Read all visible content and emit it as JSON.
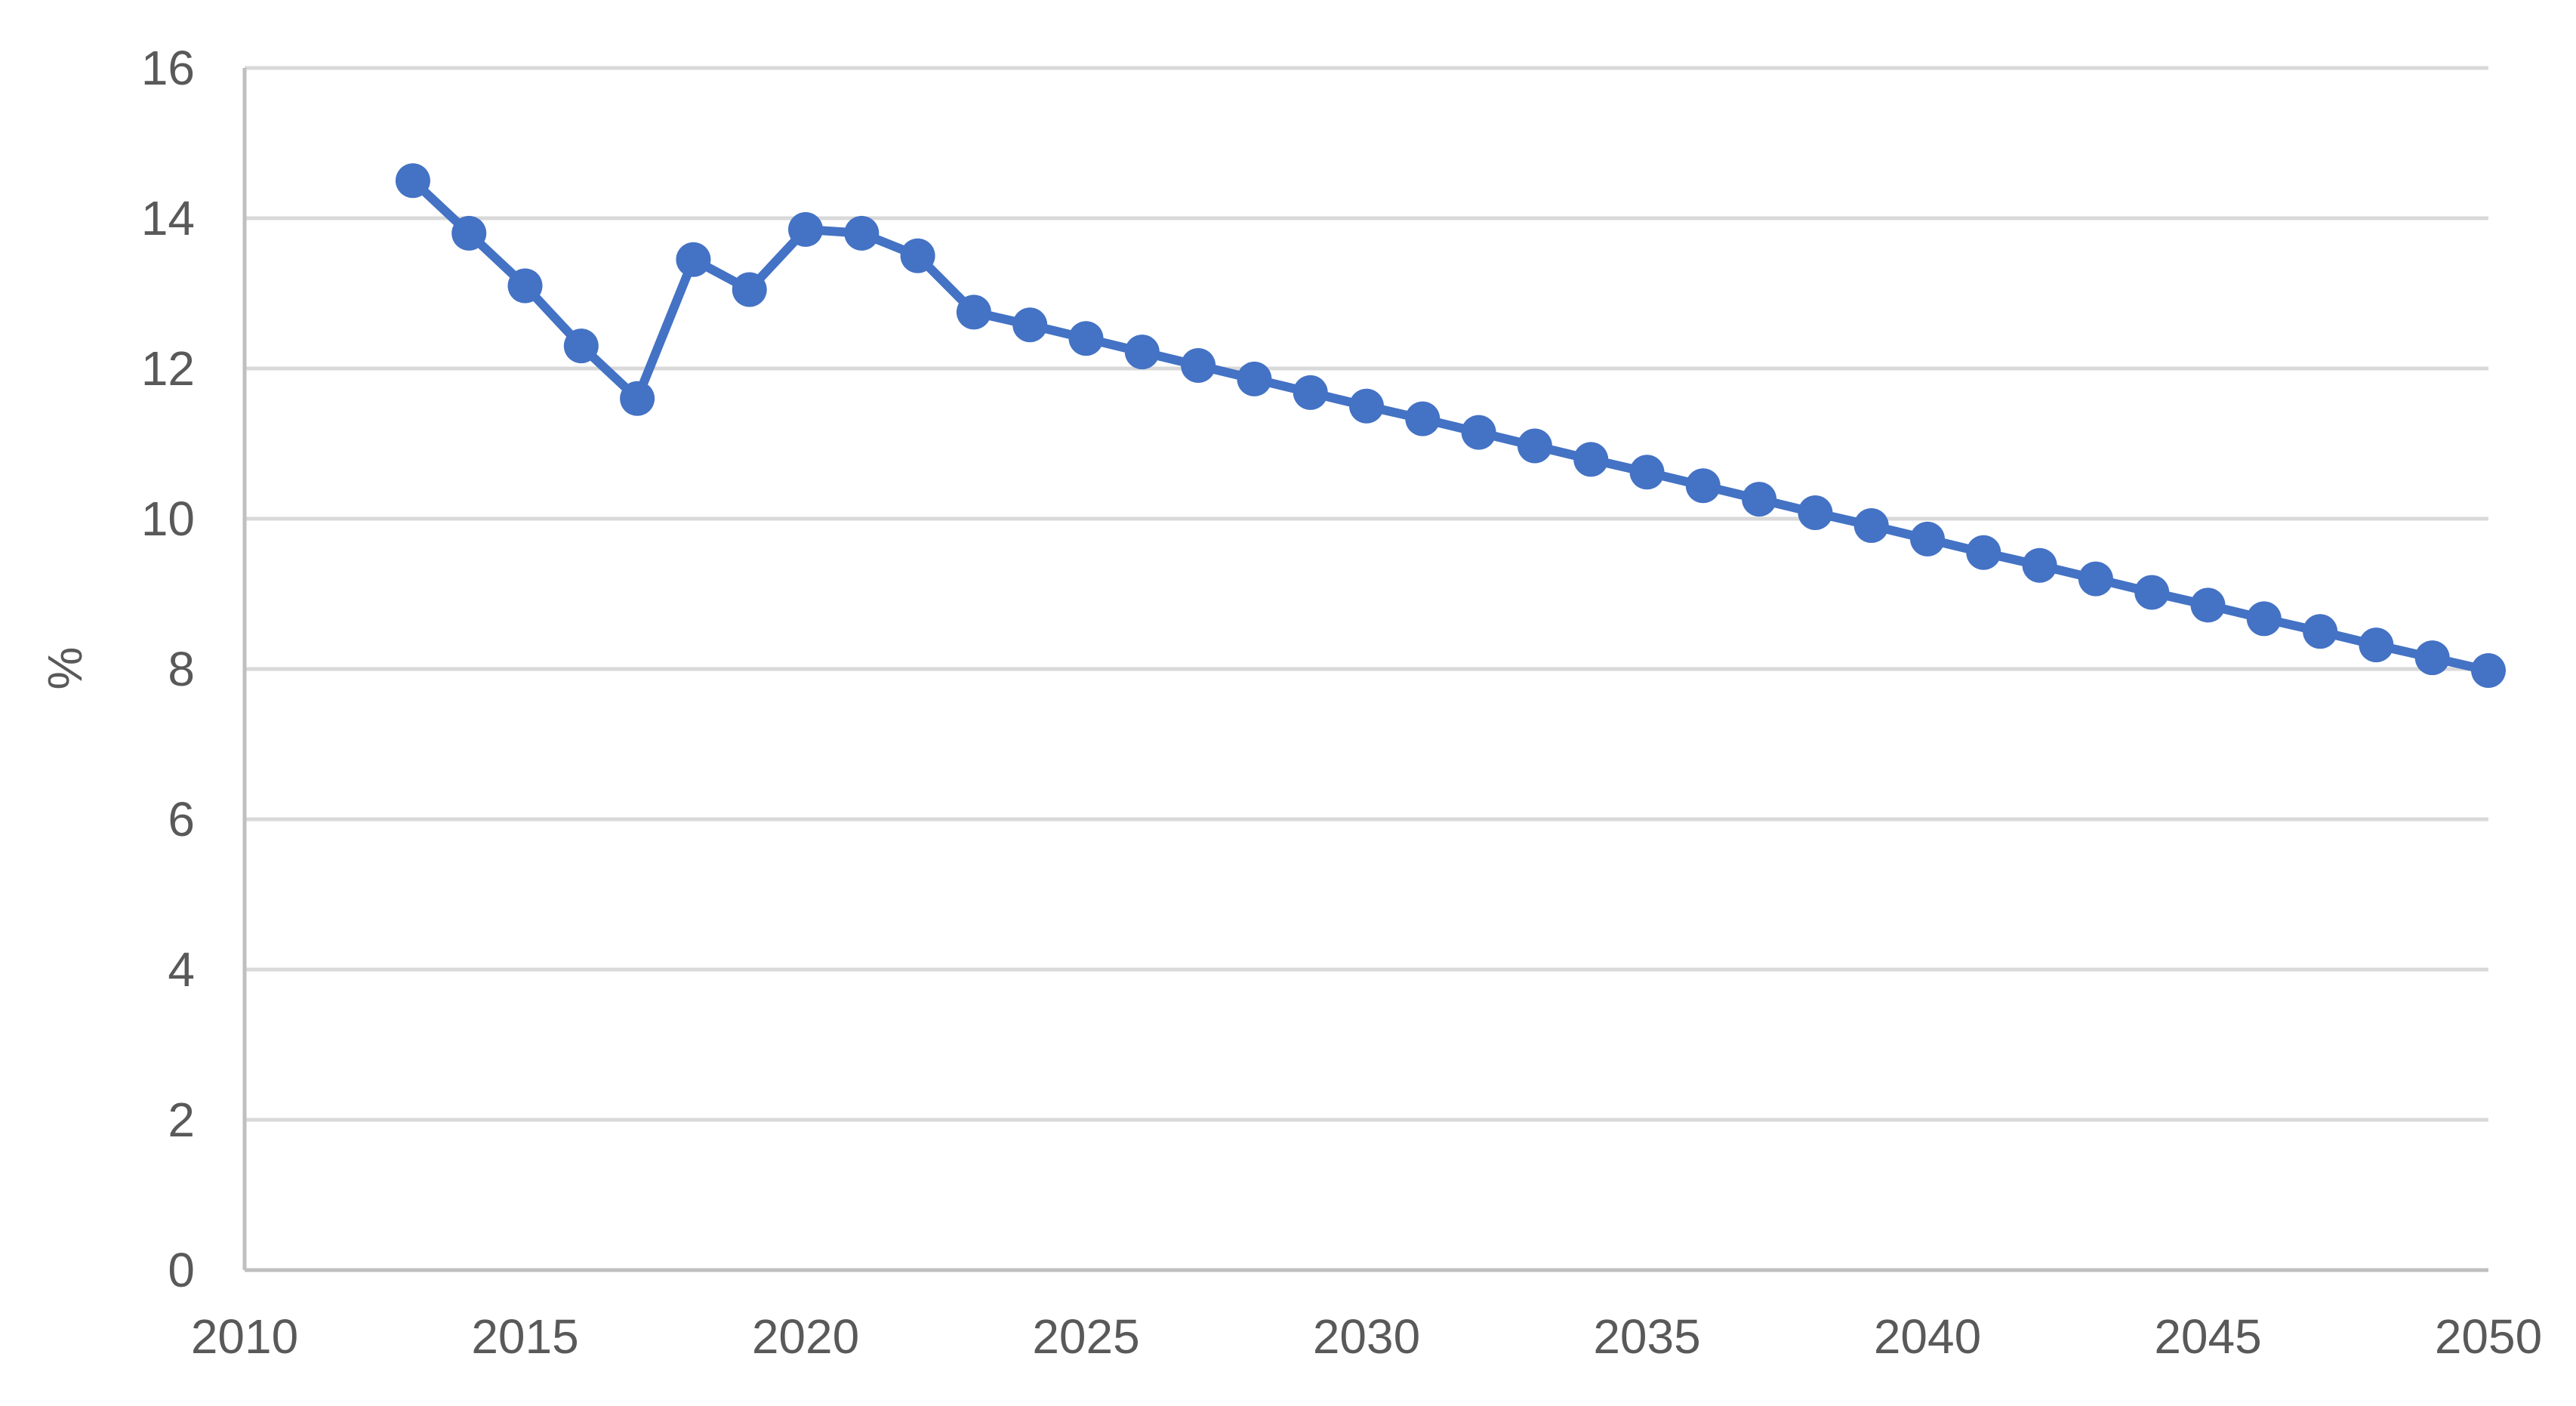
{
  "chart_data": {
    "type": "line",
    "title": "",
    "xlabel": "",
    "ylabel": "%",
    "xlim": [
      2010,
      2050
    ],
    "ylim": [
      0,
      16
    ],
    "x_ticks": [
      "2010",
      "2015",
      "2020",
      "2025",
      "2030",
      "2035",
      "2040",
      "2045",
      "2050"
    ],
    "y_ticks": [
      "0",
      "2",
      "4",
      "6",
      "8",
      "10",
      "12",
      "14",
      "16"
    ],
    "grid": true,
    "legend": "none",
    "colors": {
      "series": "#4472C4",
      "grid": "#D9D9D9",
      "axis": "#BFBFBF",
      "text": "#595959"
    },
    "series": [
      {
        "marker": "circle",
        "points": [
          [
            2013,
            14.5
          ],
          [
            2014,
            13.8
          ],
          [
            2015,
            13.1
          ],
          [
            2016,
            12.3
          ],
          [
            2017,
            11.6
          ],
          [
            2018,
            13.45
          ],
          [
            2019,
            13.05
          ],
          [
            2020,
            13.85
          ],
          [
            2021,
            13.8
          ],
          [
            2022,
            13.5
          ],
          [
            2023,
            12.75
          ],
          [
            2024,
            12.58
          ],
          [
            2025,
            12.4
          ],
          [
            2026,
            12.22
          ],
          [
            2027,
            12.04
          ],
          [
            2028,
            11.86
          ],
          [
            2029,
            11.68
          ],
          [
            2030,
            11.5
          ],
          [
            2031,
            11.33
          ],
          [
            2032,
            11.15
          ],
          [
            2033,
            10.97
          ],
          [
            2034,
            10.79
          ],
          [
            2035,
            10.62
          ],
          [
            2036,
            10.44
          ],
          [
            2037,
            10.26
          ],
          [
            2038,
            10.08
          ],
          [
            2039,
            9.91
          ],
          [
            2040,
            9.73
          ],
          [
            2041,
            9.55
          ],
          [
            2042,
            9.38
          ],
          [
            2043,
            9.2
          ],
          [
            2044,
            9.02
          ],
          [
            2045,
            8.85
          ],
          [
            2046,
            8.67
          ],
          [
            2047,
            8.5
          ],
          [
            2048,
            8.32
          ],
          [
            2049,
            8.15
          ],
          [
            2050,
            7.98
          ]
        ]
      }
    ]
  }
}
